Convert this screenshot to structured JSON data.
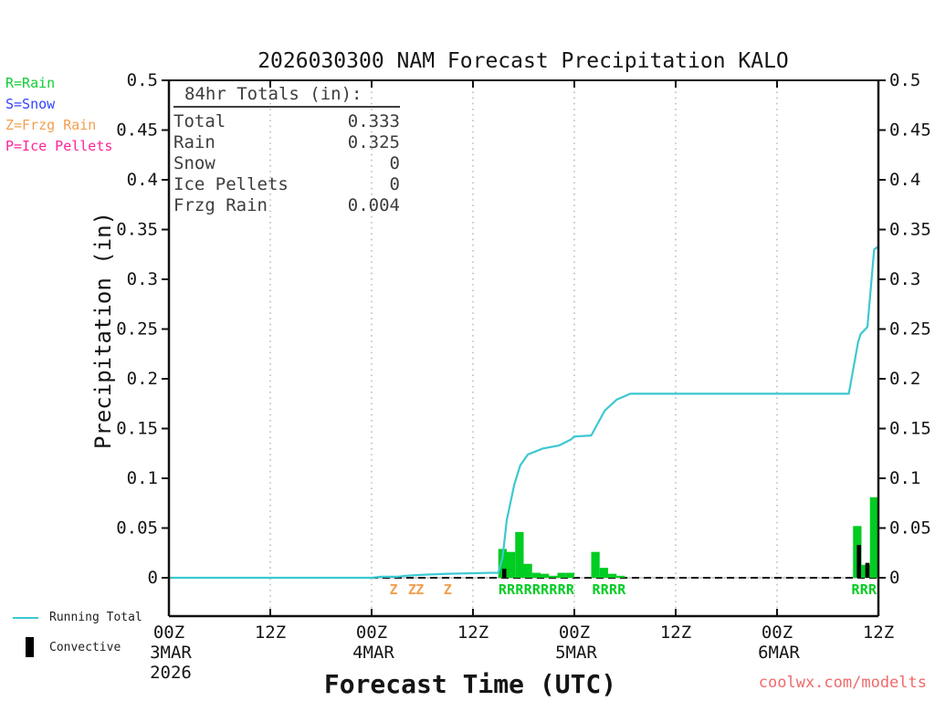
{
  "title": "2026030300 NAM Forecast Precipitation KALO",
  "watermark": "coolwx.com/modelts",
  "watermark_color": "#f06a6a",
  "type_legend": {
    "items": [
      {
        "label": "R=Rain",
        "color": "#11cc33"
      },
      {
        "label": "S=Snow",
        "color": "#3344ff"
      },
      {
        "label": "Z=Frzg Rain",
        "color": "#f0a050"
      },
      {
        "label": "P=Ice Pellets",
        "color": "#ff2299"
      }
    ]
  },
  "totals_box": {
    "heading": "84hr Totals (in):",
    "rows": [
      {
        "label": "Total",
        "value": "0.333"
      },
      {
        "label": "Rain",
        "value": "0.325"
      },
      {
        "label": "Snow",
        "value": "0"
      },
      {
        "label": "Ice Pellets",
        "value": "0"
      },
      {
        "label": "Frzg Rain",
        "value": "0.004"
      }
    ]
  },
  "series_legend": [
    {
      "label": "Running Total",
      "color": "#3cc8d2"
    },
    {
      "label": "Convective",
      "color": "#000000"
    }
  ],
  "chart_data": {
    "type": "line+bar",
    "title": "2026030300 NAM Forecast Precipitation KALO",
    "xlabel": "Forecast Time (UTC)",
    "ylabel": "Precipitation (in)",
    "ylim": [
      0,
      0.5
    ],
    "ytick_step": 0.05,
    "x_hours_total": 84,
    "grid": "vertical dotted lines at 12h ticks",
    "x_ticks": [
      {
        "hour": 0,
        "label": "00Z",
        "date": "3MAR",
        "year": "2026"
      },
      {
        "hour": 12,
        "label": "12Z"
      },
      {
        "hour": 24,
        "label": "00Z",
        "date": "4MAR"
      },
      {
        "hour": 36,
        "label": "12Z"
      },
      {
        "hour": 48,
        "label": "00Z",
        "date": "5MAR"
      },
      {
        "hour": 60,
        "label": "12Z"
      },
      {
        "hour": 72,
        "label": "00Z",
        "date": "6MAR"
      },
      {
        "hour": 84,
        "label": "12Z"
      }
    ],
    "running_total_line": {
      "color": "#3cc8d2",
      "points": [
        [
          0,
          0
        ],
        [
          24,
          0
        ],
        [
          25,
          0.001
        ],
        [
          27,
          0.001
        ],
        [
          28,
          0.002
        ],
        [
          30,
          0.003
        ],
        [
          33,
          0.004
        ],
        [
          38,
          0.005
        ],
        [
          39,
          0.005
        ],
        [
          39.5,
          0.02
        ],
        [
          40,
          0.058
        ],
        [
          40.9,
          0.094
        ],
        [
          41.6,
          0.113
        ],
        [
          42.5,
          0.124
        ],
        [
          44.3,
          0.13
        ],
        [
          46.2,
          0.133
        ],
        [
          47.6,
          0.139
        ],
        [
          48,
          0.142
        ],
        [
          50,
          0.143
        ],
        [
          51.6,
          0.168
        ],
        [
          53,
          0.179
        ],
        [
          54.1,
          0.183
        ],
        [
          54.6,
          0.185
        ],
        [
          80.5,
          0.185
        ],
        [
          81.6,
          0.237
        ],
        [
          81.9,
          0.245
        ],
        [
          82.7,
          0.252
        ],
        [
          83.5,
          0.33
        ],
        [
          84,
          0.333
        ]
      ]
    },
    "precip_bars": {
      "color": "#00cc22",
      "convective_color": "#000000",
      "width_hours": 1,
      "bars": [
        {
          "hour": 39,
          "total": 0.029,
          "convective": 0.009
        },
        {
          "hour": 40,
          "total": 0.026
        },
        {
          "hour": 41,
          "total": 0.046
        },
        {
          "hour": 42,
          "total": 0.014
        },
        {
          "hour": 43,
          "total": 0.005
        },
        {
          "hour": 44,
          "total": 0.004
        },
        {
          "hour": 45,
          "total": 0.002
        },
        {
          "hour": 46,
          "total": 0.005
        },
        {
          "hour": 47,
          "total": 0.005
        },
        {
          "hour": 50,
          "total": 0.026
        },
        {
          "hour": 51,
          "total": 0.01
        },
        {
          "hour": 52,
          "total": 0.004
        },
        {
          "hour": 53,
          "total": 0.002
        },
        {
          "hour": 81,
          "total": 0.052,
          "convective": 0.033
        },
        {
          "hour": 82,
          "total": 0.013,
          "convective": 0.015
        },
        {
          "hour": 83,
          "total": 0.081
        }
      ]
    },
    "ptype_markers": [
      {
        "hour": 26.6,
        "letter": "Z",
        "color": "#f0a050"
      },
      {
        "hour": 28.8,
        "letter": "Z",
        "color": "#f0a050"
      },
      {
        "hour": 29.7,
        "letter": "Z",
        "color": "#f0a050"
      },
      {
        "hour": 33.0,
        "letter": "Z",
        "color": "#f0a050"
      },
      {
        "hour": 39.5,
        "letter": "R",
        "color": "#00cc22"
      },
      {
        "hour": 40.5,
        "letter": "R",
        "color": "#00cc22"
      },
      {
        "hour": 41.5,
        "letter": "R",
        "color": "#00cc22"
      },
      {
        "hour": 42.5,
        "letter": "R",
        "color": "#00cc22"
      },
      {
        "hour": 43.5,
        "letter": "R",
        "color": "#00cc22"
      },
      {
        "hour": 44.5,
        "letter": "R",
        "color": "#00cc22"
      },
      {
        "hour": 45.5,
        "letter": "R",
        "color": "#00cc22"
      },
      {
        "hour": 46.5,
        "letter": "R",
        "color": "#00cc22"
      },
      {
        "hour": 47.5,
        "letter": "R",
        "color": "#00cc22"
      },
      {
        "hour": 50.6,
        "letter": "R",
        "color": "#00cc22"
      },
      {
        "hour": 51.6,
        "letter": "R",
        "color": "#00cc22"
      },
      {
        "hour": 52.6,
        "letter": "R",
        "color": "#00cc22"
      },
      {
        "hour": 53.6,
        "letter": "R",
        "color": "#00cc22"
      },
      {
        "hour": 81.3,
        "letter": "R",
        "color": "#00cc22"
      },
      {
        "hour": 82.3,
        "letter": "R",
        "color": "#00cc22"
      },
      {
        "hour": 83.3,
        "letter": "R",
        "color": "#00cc22"
      }
    ]
  }
}
